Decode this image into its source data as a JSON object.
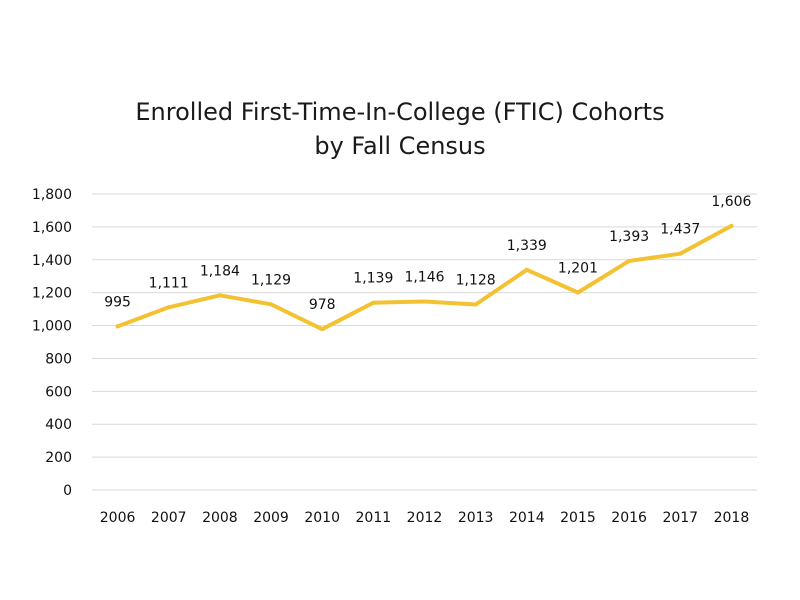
{
  "chart_data": {
    "type": "line",
    "title_line1": "Enrolled First-Time-In-College (FTIC) Cohorts",
    "title_line2": "by Fall Census",
    "categories": [
      "2006",
      "2007",
      "2008",
      "2009",
      "2010",
      "2011",
      "2012",
      "2013",
      "2014",
      "2015",
      "2016",
      "2017",
      "2018"
    ],
    "values": [
      995,
      1111,
      1184,
      1129,
      978,
      1139,
      1146,
      1128,
      1339,
      1201,
      1393,
      1437,
      1606
    ],
    "data_labels": [
      "995",
      "1,111",
      "1,184",
      "1,129",
      "978",
      "1,139",
      "1,146",
      "1,128",
      "1,339",
      "1,201",
      "1,393",
      "1,437",
      "1,606"
    ],
    "y_ticks": [
      0,
      200,
      400,
      600,
      800,
      1000,
      1200,
      1400,
      1600,
      1800
    ],
    "y_tick_labels": [
      "0",
      "200",
      "400",
      "600",
      "800",
      "1,000",
      "1,200",
      "1,400",
      "1,600",
      "1,800"
    ],
    "ylim": [
      0,
      1800
    ],
    "grid": true,
    "legend": "none",
    "line_color": "#F2C232",
    "grid_color": "#d9d9d9"
  }
}
